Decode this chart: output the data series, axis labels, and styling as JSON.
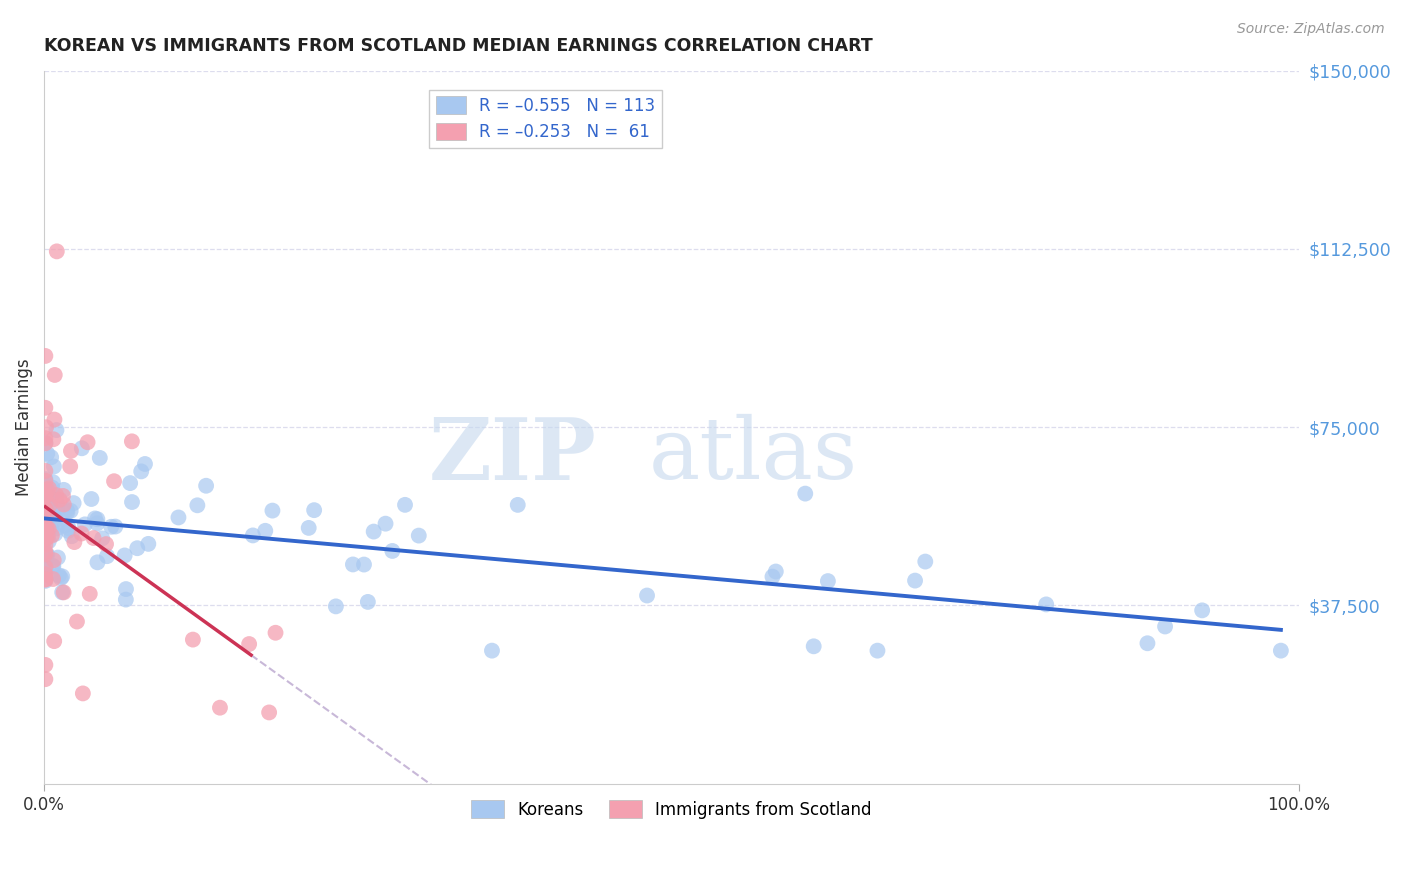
{
  "title": "KOREAN VS IMMIGRANTS FROM SCOTLAND MEDIAN EARNINGS CORRELATION CHART",
  "source": "Source: ZipAtlas.com",
  "ylabel": "Median Earnings",
  "watermark_zip": "ZIP",
  "watermark_atlas": "atlas",
  "legend_entry1": "R = –0.555   N = 113",
  "legend_entry2": "R = –0.253   N =  61",
  "legend_label1": "Koreans",
  "legend_label2": "Immigrants from Scotland",
  "blue_scatter_color": "#A8C8F0",
  "pink_scatter_color": "#F4A0B0",
  "blue_line_color": "#3366CC",
  "pink_line_color": "#CC3355",
  "dashed_line_color": "#C8B8D8",
  "grid_color": "#DDDDEE",
  "bg_color": "#FFFFFF",
  "title_color": "#222222",
  "source_color": "#999999",
  "ytick_color": "#5599DD",
  "xtick_color": "#333333",
  "ylabel_color": "#333333",
  "xlim": [
    0.0,
    1.0
  ],
  "ylim": [
    0,
    150000
  ],
  "yticks": [
    37500,
    75000,
    112500,
    150000
  ],
  "ytick_labels": [
    "$37,500",
    "$75,000",
    "$112,500",
    "$150,000"
  ]
}
